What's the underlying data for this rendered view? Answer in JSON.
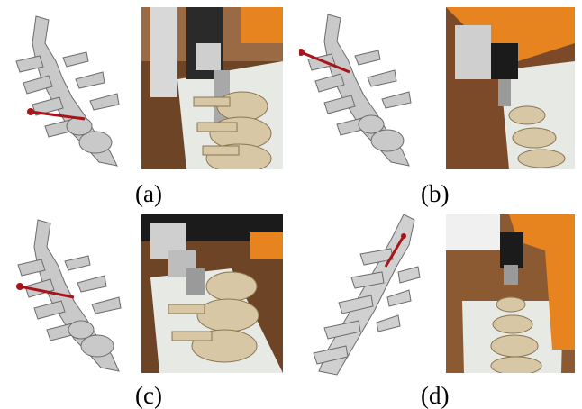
{
  "figure": {
    "panels": [
      {
        "caption": "(a)",
        "photo_bg": "#7a4a2a"
      },
      {
        "caption": "(b)",
        "photo_bg": "#8a5530"
      },
      {
        "caption": "(c)",
        "photo_bg": "#6e4428"
      },
      {
        "caption": "(d)",
        "photo_bg": "#8b5a33"
      }
    ],
    "colors": {
      "bone_model": "#c8c8c8",
      "bone_edge": "#6a6a6a",
      "trajectory": "#a8141a",
      "robot_orange": "#e8841f",
      "robot_black": "#1b1b1b",
      "bone_real": "#d8c9a8",
      "board": "#e8ebe6"
    }
  }
}
